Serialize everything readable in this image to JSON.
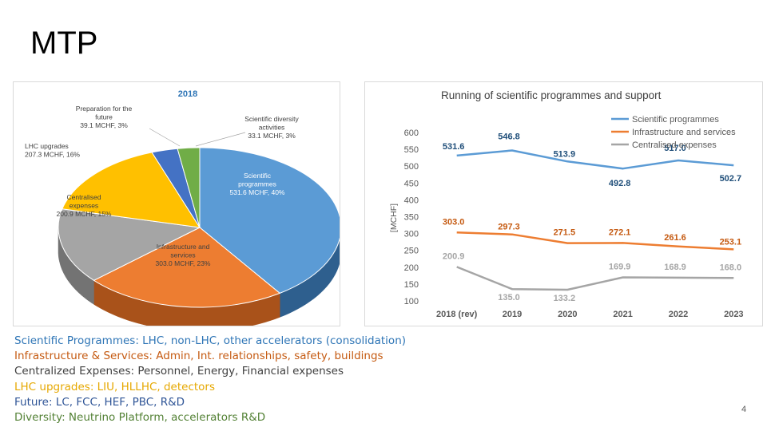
{
  "slide": {
    "title": "MTP",
    "page_number": "4"
  },
  "chart_data": [
    {
      "type": "pie",
      "title": "2018",
      "slices": [
        {
          "name": "Scientific programmes",
          "value": 531.6,
          "percent": 40,
          "lines": [
            "Scientific",
            "programmes",
            "531.6 MCHF, 40%"
          ],
          "color": "#5b9bd5",
          "side": "#2e5f8e"
        },
        {
          "name": "Infrastructure and services",
          "value": 303.0,
          "percent": 23,
          "lines": [
            "Infrastructure and",
            "services",
            "303.0 MCHF, 23%"
          ],
          "color": "#ed7d31",
          "side": "#a9521a"
        },
        {
          "name": "Centralised expenses",
          "value": 200.9,
          "percent": 15,
          "lines": [
            "Centralised",
            "expenses",
            "200.9 MCHF, 15%"
          ],
          "color": "#a5a5a5",
          "side": "#737373"
        },
        {
          "name": "LHC upgrades",
          "value": 207.3,
          "percent": 16,
          "lines": [
            "LHC upgrades",
            "207.3 MCHF, 16%"
          ],
          "color": "#ffc000",
          "side": "#b38600"
        },
        {
          "name": "Preparation for the future",
          "value": 39.1,
          "percent": 3,
          "lines": [
            "Preparation for the",
            "future",
            "39.1 MCHF, 3%"
          ],
          "color": "#4472c4",
          "side": "#2b4a80"
        },
        {
          "name": "Scientific diversity activities",
          "value": 33.1,
          "percent": 3,
          "lines": [
            "Scientific diversity",
            "activities",
            "33.1 MCHF, 3%"
          ],
          "color": "#70ad47",
          "side": "#4a7530"
        }
      ]
    },
    {
      "type": "line",
      "title": "Running of scientific programmes and support",
      "ylabel": "[MCHF]",
      "ylim": [
        100,
        600
      ],
      "yticks": [
        "100",
        "150",
        "200",
        "250",
        "300",
        "350",
        "400",
        "450",
        "500",
        "550",
        "600"
      ],
      "categories": [
        "2018 (rev)",
        "2019",
        "2020",
        "2021",
        "2022",
        "2023"
      ],
      "series": [
        {
          "name": "Scientific programmes",
          "color": "#5b9bd5",
          "label_color": "#1f4e79",
          "values": [
            531.6,
            546.8,
            513.9,
            492.8,
            517.0,
            502.7
          ],
          "labels": [
            "531.6",
            "546.8",
            "513.9",
            "492.8",
            "517.0",
            "502.7"
          ]
        },
        {
          "name": "Infrastructure and services",
          "color": "#ed7d31",
          "label_color": "#c55a11",
          "values": [
            303.0,
            297.3,
            271.5,
            272.1,
            261.6,
            253.1
          ],
          "labels": [
            "303.0",
            "297.3",
            "271.5",
            "272.1",
            "261.6",
            "253.1"
          ]
        },
        {
          "name": "Centralised expenses",
          "color": "#a5a5a5",
          "label_color": "#a6a6a6",
          "values": [
            200.9,
            135.0,
            133.2,
            169.9,
            168.9,
            168.0
          ],
          "labels": [
            "200.9",
            "135.0",
            "133.2",
            "169.9",
            "168.9",
            "168.0"
          ]
        }
      ]
    }
  ],
  "notes": [
    {
      "text": "Scientific Programmes: LHC, non-LHC, other accelerators (consolidation)",
      "color": "#2e75b6"
    },
    {
      "text": "Infrastructure & Services: Admin, Int. relationships, safety, buildings",
      "color": "#c55a11"
    },
    {
      "text": "Centralized Expenses: Personnel, Energy, Financial expenses",
      "color": "#404040"
    },
    {
      "text": "LHC upgrades: LIU, HLLHC, detectors",
      "color": "#e6a800"
    },
    {
      "text": "Future: LC, FCC, HEF, PBC, R&D",
      "color": "#2f5597"
    },
    {
      "text": "Diversity: Neutrino Platform, accelerators R&D",
      "color": "#538135"
    }
  ]
}
